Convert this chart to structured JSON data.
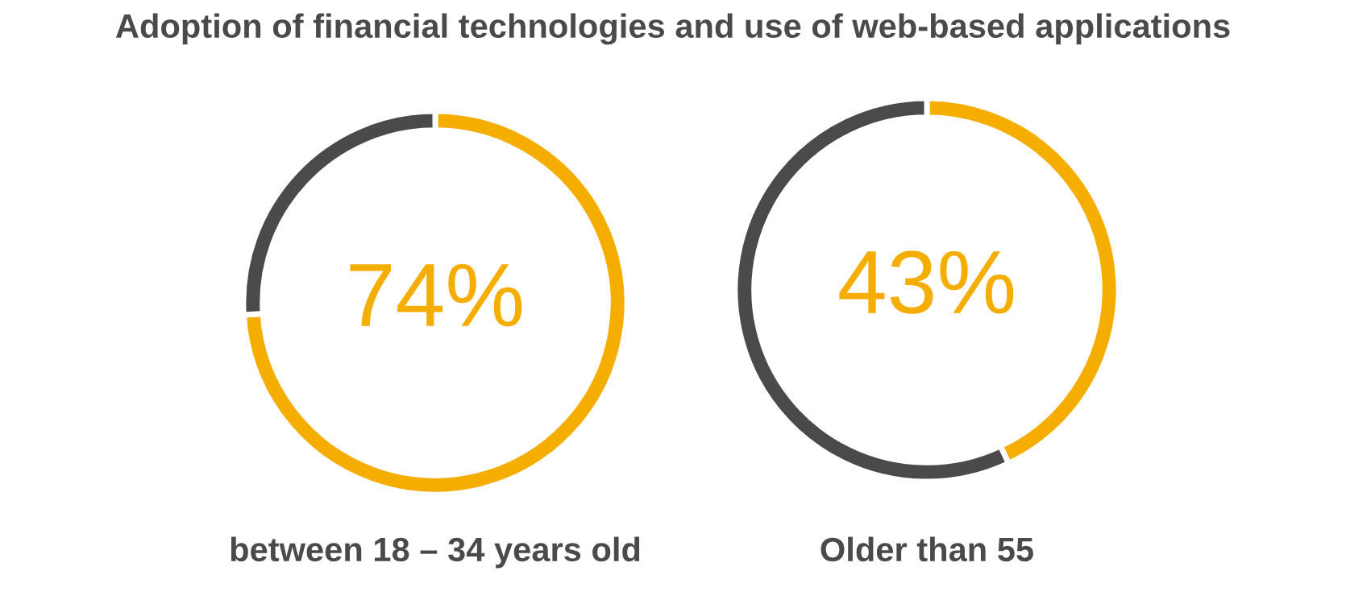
{
  "chart_data": [
    {
      "type": "donut",
      "title": "Adoption of financial technologies and use of web-based applications",
      "categories": [
        null,
        null
      ],
      "values": [
        74,
        26
      ],
      "colors": [
        "#f5ad00",
        "#4a4a4a"
      ],
      "value_labels": [
        "74%",
        null
      ],
      "xlabel": "between 18 – 34 years old"
    },
    {
      "type": "donut",
      "categories": [
        null,
        null
      ],
      "values": [
        43,
        57
      ],
      "colors": [
        "#f5ad00",
        "#4a4a4a"
      ],
      "value_labels": [
        "43%",
        null
      ],
      "xlabel": "Older than 55"
    }
  ]
}
